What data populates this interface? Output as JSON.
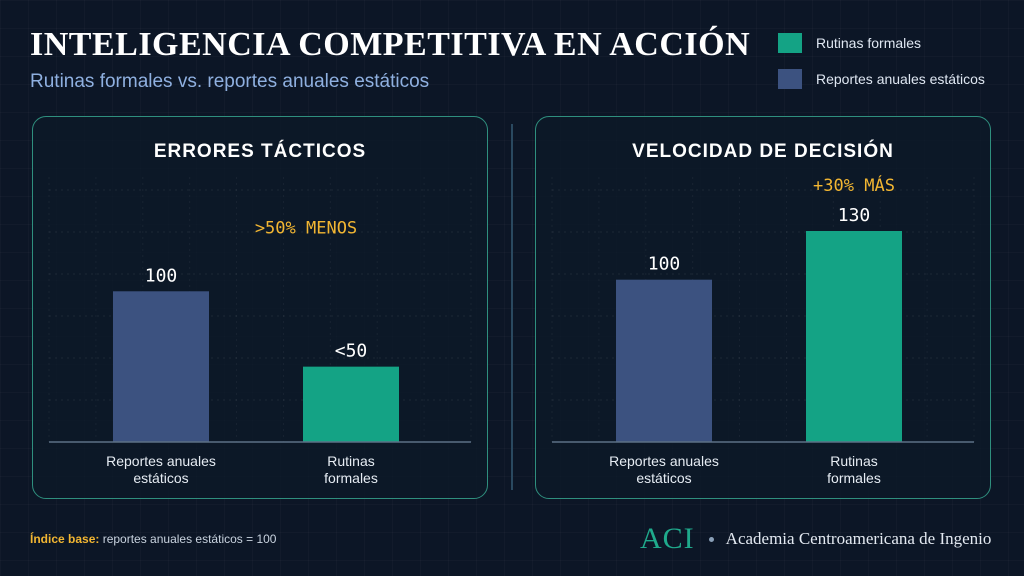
{
  "header": {
    "title": "INTELIGENCIA COMPETITIVA EN ACCIÓN",
    "subtitle": "Rutinas formales vs. reportes anuales estáticos"
  },
  "legend": [
    {
      "label": "Rutinas formales",
      "color": "#14a385"
    },
    {
      "label": "Reportes anuales estáticos",
      "color": "#3c5280"
    }
  ],
  "chart_data": [
    {
      "type": "bar",
      "title": "ERRORES TÁCTICOS",
      "annotation": ">50% MENOS",
      "categories": [
        [
          "Reportes anuales",
          "estáticos"
        ],
        [
          "Rutinas",
          "formales"
        ]
      ],
      "values": [
        100,
        50
      ],
      "value_labels": [
        "100",
        "<50"
      ],
      "colors": [
        "#3c5280",
        "#14a385"
      ],
      "ylim": [
        0,
        140
      ],
      "grid": true
    },
    {
      "type": "bar",
      "title": "VELOCIDAD DE DECISIÓN",
      "annotation": "+30% MÁS",
      "categories": [
        [
          "Reportes anuales",
          "estáticos"
        ],
        [
          "Rutinas",
          "formales"
        ]
      ],
      "values": [
        100,
        130
      ],
      "value_labels": [
        "100",
        "130"
      ],
      "colors": [
        "#3c5280",
        "#14a385"
      ],
      "ylim": [
        0,
        130
      ],
      "grid": true
    }
  ],
  "footer": {
    "note_key": "Índice base:",
    "note_text": "reportes anuales estáticos = 100",
    "brand_logo": "ACI",
    "brand_name": "Academia Centroamericana de Ingenio"
  }
}
